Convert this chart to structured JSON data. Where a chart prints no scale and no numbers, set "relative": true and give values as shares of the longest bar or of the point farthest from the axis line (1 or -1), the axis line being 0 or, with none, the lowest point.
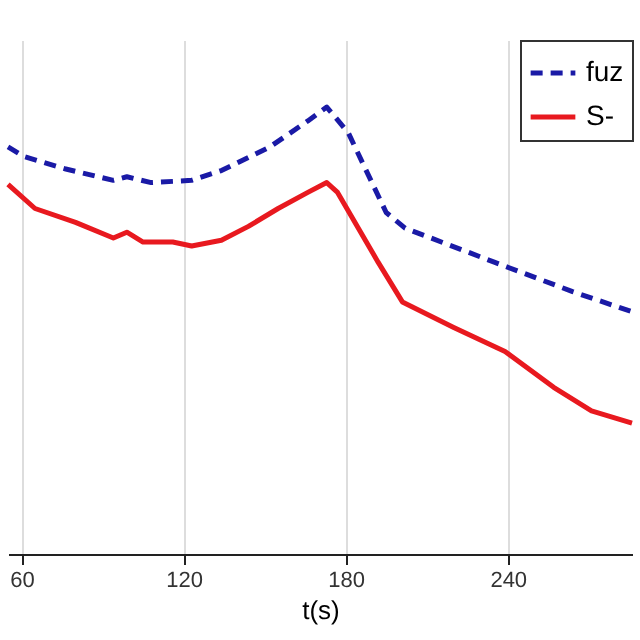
{
  "chart_data": {
    "type": "line",
    "xlabel": "t(s)",
    "relative": true,
    "xlim": [
      55,
      286
    ],
    "xticks": [
      60,
      120,
      180,
      240
    ],
    "grid": "x",
    "legend": "top right",
    "marker": "none",
    "series": [
      {
        "name": "fuz",
        "color": "#1a1aa6",
        "line_style": "dashed",
        "x": [
          55,
          61,
          76,
          94,
          99,
          108,
          123,
          134,
          152,
          166,
          173,
          181,
          195,
          202,
          235,
          264,
          286
        ],
        "values": [
          0.911,
          0.889,
          0.862,
          0.836,
          0.844,
          0.831,
          0.836,
          0.858,
          0.911,
          0.969,
          1,
          0.942,
          0.764,
          0.729,
          0.653,
          0.587,
          0.542
        ]
      },
      {
        "name": "S-",
        "color": "#e8191f",
        "line_style": "solid",
        "x": [
          55,
          65,
          80,
          94,
          99,
          105,
          116,
          123,
          134,
          144,
          155,
          166,
          173,
          177,
          192,
          201,
          220,
          239,
          257,
          271,
          286
        ],
        "values": [
          0.827,
          0.773,
          0.742,
          0.707,
          0.72,
          0.698,
          0.698,
          0.689,
          0.702,
          0.733,
          0.773,
          0.809,
          0.831,
          0.809,
          0.653,
          0.564,
          0.507,
          0.453,
          0.373,
          0.32,
          0.293
        ]
      }
    ]
  }
}
